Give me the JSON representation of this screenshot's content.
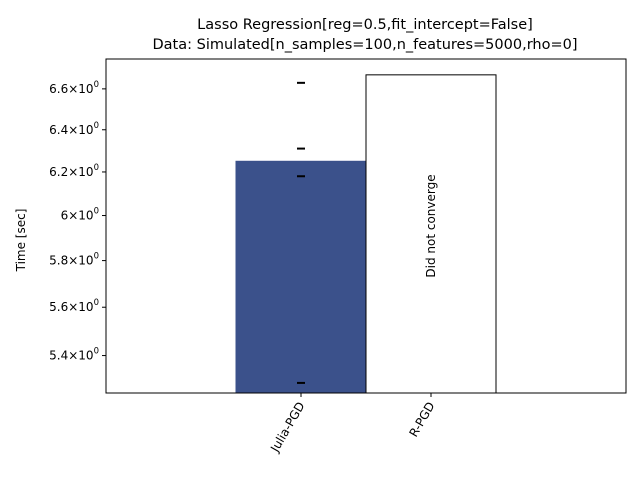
{
  "chart_data": {
    "type": "bar",
    "title": "Lasso Regression[reg=0.5,fit_intercept=False]",
    "subtitle": "Data: Simulated[n_samples=100,n_features=5000,rho=0]",
    "xlabel": "",
    "ylabel": "Time [sec]",
    "yscale": "log",
    "ylim": [
      5.25,
      6.75
    ],
    "categories": [
      "Julia-PGD",
      "R-PGD"
    ],
    "values": [
      6.25,
      6.67
    ],
    "colors": [
      "#3b518b",
      "#ffffff"
    ],
    "edgecolors": [
      "#3b518b",
      "#000000"
    ],
    "run_times": [
      {
        "category": "Julia-PGD",
        "values": [
          6.63,
          6.31,
          6.18,
          5.29
        ]
      }
    ],
    "annotations": [
      {
        "category": "R-PGD",
        "text": "Did not converge"
      }
    ],
    "yticks": [
      {
        "value": 5.4,
        "base": "5.4",
        "exp": "0"
      },
      {
        "value": 5.6,
        "base": "5.6",
        "exp": "0"
      },
      {
        "value": 5.8,
        "base": "5.8",
        "exp": "0"
      },
      {
        "value": 6.0,
        "base": "6",
        "exp": "0"
      },
      {
        "value": 6.2,
        "base": "6.2",
        "exp": "0"
      },
      {
        "value": 6.4,
        "base": "6.4",
        "exp": "0"
      },
      {
        "value": 6.6,
        "base": "6.6",
        "exp": "0"
      }
    ],
    "grid": false,
    "legend": false
  }
}
